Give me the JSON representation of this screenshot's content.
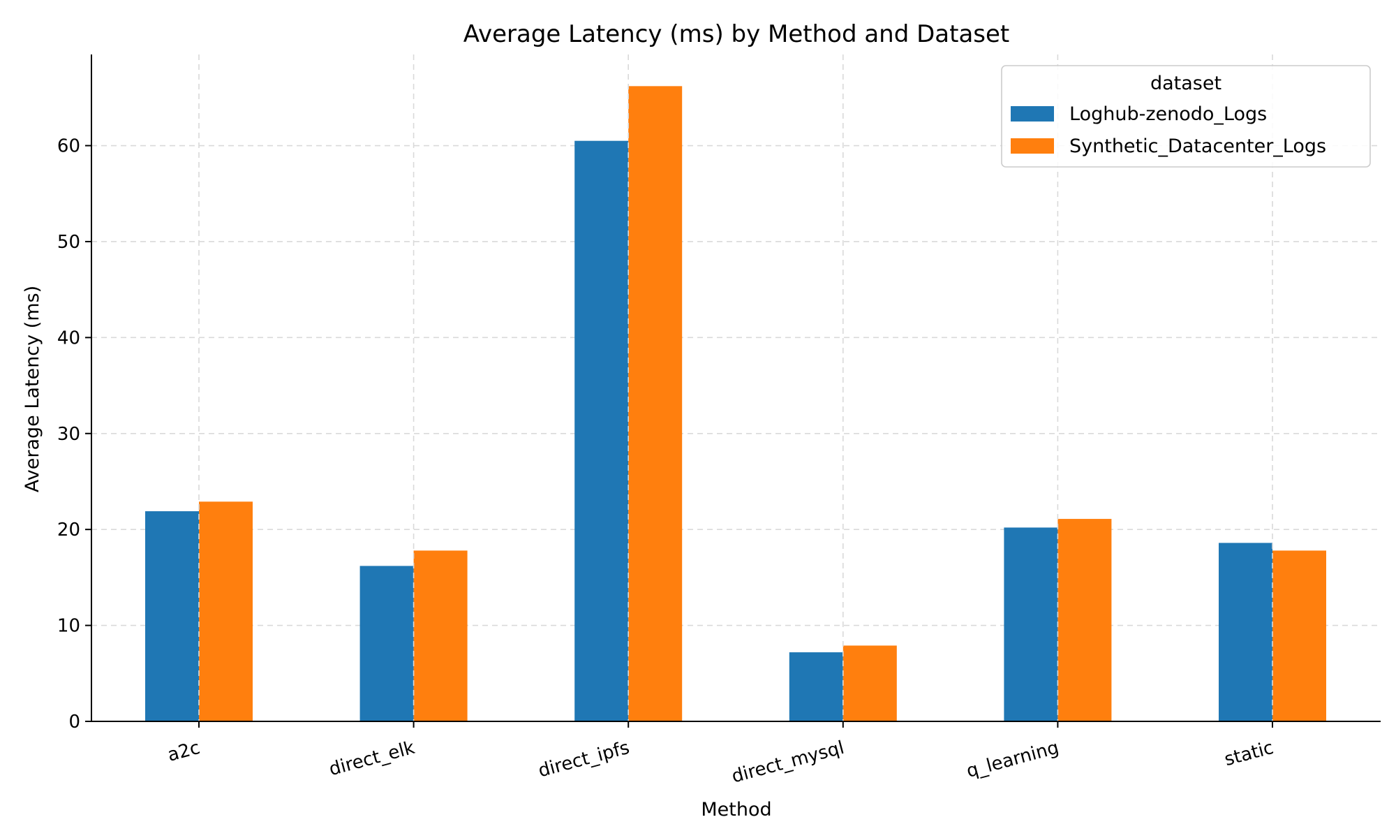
{
  "chart_data": {
    "type": "bar",
    "title": "Average Latency (ms) by Method and Dataset",
    "xlabel": "Method",
    "ylabel": "Average Latency (ms)",
    "categories": [
      "a2c",
      "direct_elk",
      "direct_ipfs",
      "direct_mysql",
      "q_learning",
      "static"
    ],
    "series": [
      {
        "name": "Loghub-zenodo_Logs",
        "color": "#1f77b4",
        "values": [
          21.9,
          16.2,
          60.5,
          7.2,
          20.2,
          18.6
        ]
      },
      {
        "name": "Synthetic_Datacenter_Logs",
        "color": "#ff7f0e",
        "values": [
          22.9,
          17.8,
          66.2,
          7.9,
          21.1,
          17.8
        ]
      }
    ],
    "ylim": [
      0,
      69.5
    ],
    "yticks": [
      0,
      10,
      20,
      30,
      40,
      50,
      60
    ],
    "grid": true,
    "legend": {
      "title": "dataset",
      "placement": "top-right"
    }
  }
}
